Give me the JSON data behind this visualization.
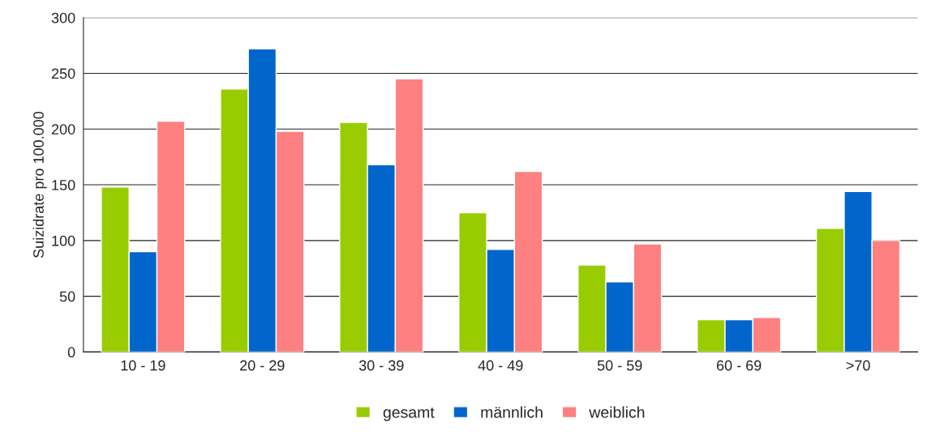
{
  "chart_data": {
    "type": "bar",
    "ylabel": "Suizidrate pro 100.000",
    "categories": [
      "10 - 19",
      "20 - 29",
      "30 - 39",
      "40 - 49",
      "50 - 59",
      "60 - 69",
      ">70"
    ],
    "series": [
      {
        "name": "gesamt",
        "color": "#99cc00",
        "values": [
          148,
          236,
          206,
          125,
          78,
          29,
          111
        ]
      },
      {
        "name": "männlich",
        "color": "#0066cc",
        "values": [
          90,
          272,
          168,
          92,
          63,
          29,
          144
        ]
      },
      {
        "name": "weiblich",
        "color": "#ff8080",
        "values": [
          207,
          198,
          245,
          162,
          97,
          31,
          100
        ]
      }
    ],
    "ylim": [
      0,
      300
    ],
    "yticks": [
      0,
      50,
      100,
      150,
      200,
      250,
      300
    ],
    "grid": "y",
    "legend": "bottom"
  }
}
